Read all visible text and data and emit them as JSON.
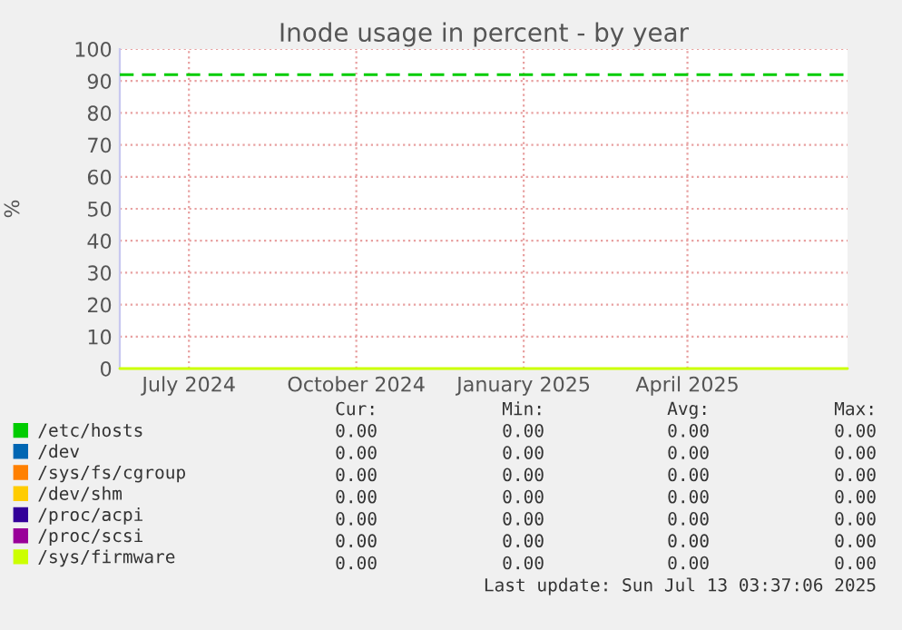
{
  "chart_data": {
    "type": "line",
    "title": "Inode usage in percent - by year",
    "ylabel": "%",
    "xlim": [
      "2024-06-08",
      "2025-07-13"
    ],
    "xticks": [
      {
        "value": "2024-07-16",
        "label": "July 2024"
      },
      {
        "value": "2024-10-16",
        "label": "October 2024"
      },
      {
        "value": "2025-01-16",
        "label": "January 2025"
      },
      {
        "value": "2025-04-16",
        "label": "April 2025"
      }
    ],
    "ylim": [
      0,
      100
    ],
    "yticks": [
      0,
      10,
      20,
      30,
      40,
      50,
      60,
      70,
      80,
      90,
      100
    ],
    "grid": true,
    "legend": "bottom",
    "marker": "none",
    "line_style": "solid",
    "ref_lines": [
      {
        "axis": "y",
        "value": 92,
        "color": "#00cc00",
        "line_style": "dashed"
      }
    ],
    "series": [
      {
        "name": "/etc/hosts",
        "color": "#00cc00"
      },
      {
        "name": "/dev",
        "color": "#0066b3"
      },
      {
        "name": "/sys/fs/cgroup",
        "color": "#ff8000"
      },
      {
        "name": "/dev/shm",
        "color": "#ffcc00"
      },
      {
        "name": "/proc/acpi",
        "color": "#330099"
      },
      {
        "name": "/proc/scsi",
        "color": "#990099"
      },
      {
        "name": "/sys/firmware",
        "color": "#ccff00",
        "x": [
          "2024-06-08",
          "2025-07-13"
        ],
        "values": [
          0,
          0
        ]
      }
    ],
    "annotations": [
      "Cur:",
      "Min:",
      "Avg:",
      "Max:",
      "0.00",
      "0.00",
      "0.00",
      "0.00",
      "0.00",
      "0.00",
      "0.00",
      "0.00",
      "0.00",
      "0.00",
      "0.00",
      "0.00",
      "0.00",
      "0.00",
      "0.00",
      "0.00",
      "0.00",
      "0.00",
      "0.00",
      "0.00",
      "0.00",
      "0.00",
      "0.00",
      "0.00",
      "0.00",
      "0.00",
      "0.00",
      "0.00",
      "Last update: Sun Jul 13 03:37:06 2025"
    ]
  }
}
